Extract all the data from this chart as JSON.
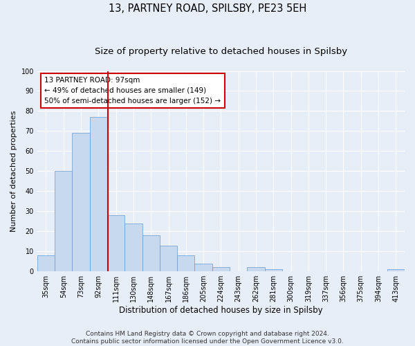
{
  "title": "13, PARTNEY ROAD, SPILSBY, PE23 5EH",
  "subtitle": "Size of property relative to detached houses in Spilsby",
  "xlabel": "Distribution of detached houses by size in Spilsby",
  "ylabel": "Number of detached properties",
  "categories": [
    "35sqm",
    "54sqm",
    "73sqm",
    "92sqm",
    "111sqm",
    "130sqm",
    "148sqm",
    "167sqm",
    "186sqm",
    "205sqm",
    "224sqm",
    "243sqm",
    "262sqm",
    "281sqm",
    "300sqm",
    "319sqm",
    "337sqm",
    "356sqm",
    "375sqm",
    "394sqm",
    "413sqm"
  ],
  "values": [
    8,
    50,
    69,
    77,
    28,
    24,
    18,
    13,
    8,
    4,
    2,
    0,
    2,
    1,
    0,
    0,
    0,
    0,
    0,
    0,
    1
  ],
  "bar_color": "#c6d9ee",
  "bar_edge_color": "#6699cc",
  "background_color": "#e8eef8",
  "grid_color": "#ffffff",
  "vline_x_index": 3.55,
  "vline_color": "#cc0000",
  "annotation_text": "13 PARTNEY ROAD: 97sqm\n← 49% of detached houses are smaller (149)\n50% of semi-detached houses are larger (152) →",
  "annotation_box_color": "#ffffff",
  "annotation_box_edge": "#cc0000",
  "ylim": [
    0,
    100
  ],
  "yticks": [
    0,
    10,
    20,
    30,
    40,
    50,
    60,
    70,
    80,
    90,
    100
  ],
  "footer": "Contains HM Land Registry data © Crown copyright and database right 2024.\nContains public sector information licensed under the Open Government Licence v3.0.",
  "title_fontsize": 10.5,
  "subtitle_fontsize": 9.5,
  "xlabel_fontsize": 8.5,
  "ylabel_fontsize": 8,
  "tick_fontsize": 7,
  "annotation_fontsize": 7.5,
  "footer_fontsize": 6.5
}
